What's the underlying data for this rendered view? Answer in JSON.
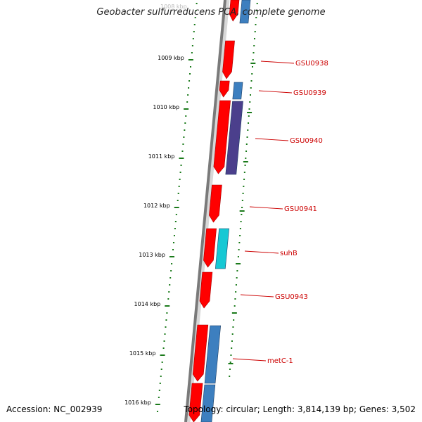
{
  "map": {
    "title": "Geobacter sulfurreducens PCA, complete genome",
    "accession": "Accession: NC_002939",
    "summary": "Topology: circular; Length: 3,814,139 bp; Genes: 3,502",
    "top_partial_label": "1008 kbp"
  },
  "ruler": {
    "unit": "kbp",
    "labels": [
      "1009 kbp",
      "1010 kbp",
      "1011 kbp",
      "1012 kbp",
      "1013 kbp",
      "1014 kbp",
      "1015 kbp",
      "1016 kbp"
    ]
  },
  "genes": [
    {
      "label": "GSU0938",
      "strand": "forward"
    },
    {
      "label": "GSU0939",
      "strand": "forward"
    },
    {
      "label": "GSU0940",
      "strand": "forward"
    },
    {
      "label": "GSU0941",
      "strand": "forward"
    },
    {
      "label": "suhB",
      "strand": "forward"
    },
    {
      "label": "GSU0943",
      "strand": "forward"
    },
    {
      "label": "metC-1",
      "strand": "forward"
    }
  ],
  "colors": {
    "cds": "#ff0000",
    "rna": "#3d7fbf",
    "rna_dark": "#4b3f8c",
    "rna_cyan": "#16c8d4",
    "backbone": "#7a7a7a",
    "ruler_dot": "#1a7a1a",
    "gene_label": "#cc0000"
  }
}
